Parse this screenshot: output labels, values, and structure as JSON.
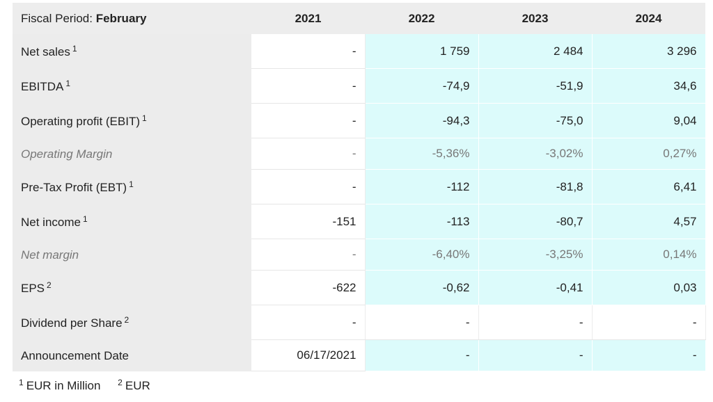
{
  "header": {
    "fiscal_label": "Fiscal Period:",
    "fiscal_value": "February",
    "years": [
      "2021",
      "2022",
      "2023",
      "2024"
    ]
  },
  "rows": [
    {
      "label": "Net sales",
      "sup": "1",
      "values": [
        "-",
        "1 759",
        "2 484",
        "3 296"
      ]
    },
    {
      "label": "EBITDA",
      "sup": "1",
      "values": [
        "-",
        "-74,9",
        "-51,9",
        "34,6"
      ]
    },
    {
      "label": "Operating profit (EBIT)",
      "sup": "1",
      "values": [
        "-",
        "-94,3",
        "-75,0",
        "9,04"
      ]
    },
    {
      "label": "Operating Margin",
      "sup": "",
      "values": [
        "-",
        "-5,36%",
        "-3,02%",
        "0,27%"
      ]
    },
    {
      "label": "Pre-Tax Profit (EBT)",
      "sup": "1",
      "values": [
        "-",
        "-112",
        "-81,8",
        "6,41"
      ]
    },
    {
      "label": "Net income",
      "sup": "1",
      "values": [
        "-151",
        "-113",
        "-80,7",
        "4,57"
      ]
    },
    {
      "label": "Net margin",
      "sup": "",
      "values": [
        "-",
        "-6,40%",
        "-3,25%",
        "0,14%"
      ]
    },
    {
      "label": "EPS",
      "sup": "2",
      "values": [
        "-622",
        "-0,62",
        "-0,41",
        "0,03"
      ]
    },
    {
      "label": "Dividend per Share",
      "sup": "2",
      "values": [
        "-",
        "-",
        "-",
        "-"
      ]
    },
    {
      "label": "Announcement Date",
      "sup": "",
      "values": [
        "06/17/2021",
        "-",
        "-",
        "-"
      ]
    }
  ],
  "footnotes": [
    {
      "mark": "1",
      "text": "EUR in Million"
    },
    {
      "mark": "2",
      "text": "EUR"
    }
  ],
  "colors": {
    "estimate_cell": "#dcfbfb",
    "label_column": "#ececec",
    "header": "#ededed"
  }
}
